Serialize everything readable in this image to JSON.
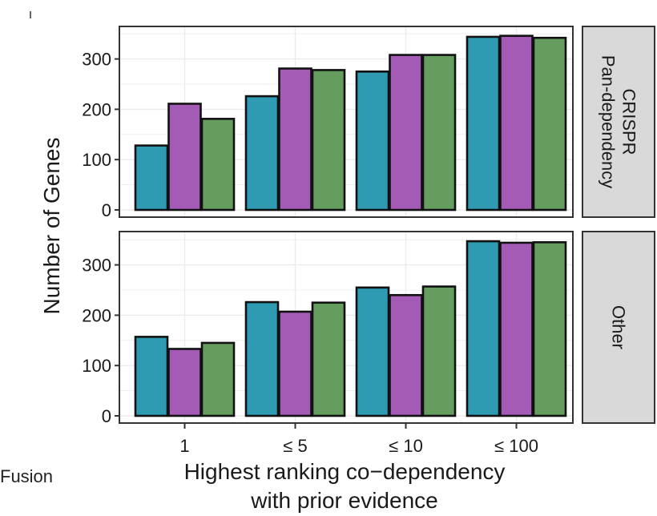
{
  "chart_data": {
    "type": "bar",
    "categories": [
      "1",
      "≤ 5",
      "≤ 10",
      "≤ 100"
    ],
    "xlabel_lines": [
      "Highest ranking co−dependency",
      "with prior evidence"
    ],
    "ylabel": "Number of Genes",
    "ylim": [
      0,
      360
    ],
    "yticks": [
      0,
      100,
      200,
      300
    ],
    "grid": true,
    "series_colors": [
      "#2e9bb3",
      "#a35bb5",
      "#659d5f"
    ],
    "panels": [
      {
        "strip_lines": [
          "CRISPR",
          "Pan-dependency"
        ],
        "series": [
          {
            "values": [
              128,
              211,
              181
            ]
          },
          {
            "values": [
              226,
              281,
              278
            ]
          },
          {
            "values": [
              275,
              308,
              308
            ]
          },
          {
            "values": [
              344,
              346,
              342
            ]
          }
        ]
      },
      {
        "strip_lines": [
          "Other"
        ],
        "series": [
          {
            "values": [
              157,
              133,
              145
            ]
          },
          {
            "values": [
              226,
              207,
              225
            ]
          },
          {
            "values": [
              255,
              240,
              257
            ]
          },
          {
            "values": [
              347,
              344,
              345
            ]
          }
        ]
      }
    ]
  },
  "side_text": "Fusion"
}
